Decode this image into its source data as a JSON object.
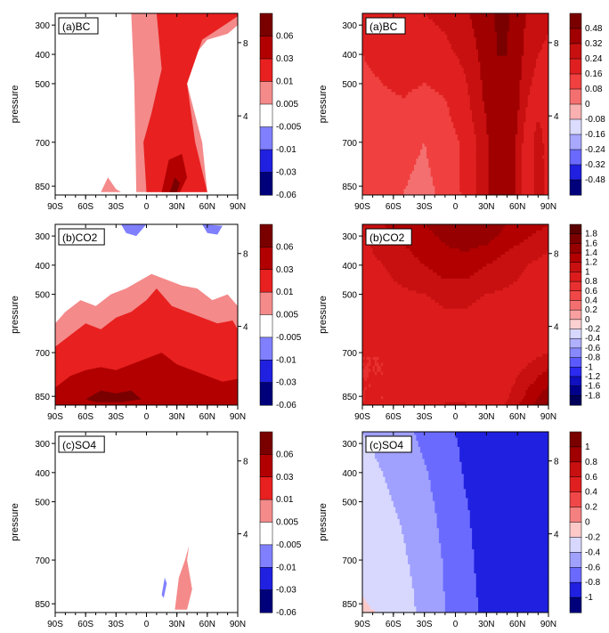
{
  "chart_data": [
    {
      "type": "heatmap",
      "panel": "(a)BC",
      "ylabel": "pressure",
      "x_ticks": [
        "90S",
        "60S",
        "30S",
        "0",
        "30N",
        "60N",
        "90N"
      ],
      "x_tick_values": [
        -90,
        -60,
        -30,
        0,
        30,
        60,
        90
      ],
      "y_ticks": [
        "300",
        "400",
        "500",
        "700",
        "850"
      ],
      "y_tick_values": [
        300,
        400,
        500,
        700,
        850
      ],
      "right_ticks": [
        "8",
        "4"
      ],
      "colorbar": {
        "levels": [
          "0.06",
          "0.03",
          "0.01",
          "0.005",
          "-0.005",
          "-0.01",
          "-0.03",
          "-0.06"
        ],
        "colors": [
          "#7a0000",
          "#b20000",
          "#e82020",
          "#f48a8a",
          "#ffffff",
          "#8080ff",
          "#2020e0",
          "#00007a"
        ]
      },
      "contour_regions": [
        {
          "level": "0.005",
          "color": "#f48a8a",
          "lon": [
            -15,
            -12,
            -10,
            30,
            60,
            55,
            40,
            48,
            60,
            80,
            90,
            90,
            45,
            -15
          ],
          "p": [
            260,
            500,
            870,
            870,
            870,
            700,
            500,
            400,
            350,
            330,
            300,
            260,
            260,
            260
          ]
        },
        {
          "level": "0.01",
          "color": "#e82020",
          "lon": [
            10,
            15,
            5,
            -3,
            0,
            20,
            42,
            60,
            48,
            40,
            55,
            90,
            90,
            10
          ],
          "p": [
            260,
            450,
            600,
            700,
            870,
            870,
            870,
            870,
            700,
            500,
            350,
            270,
            260,
            260
          ]
        },
        {
          "level": "0.03",
          "color": "#b20000",
          "lon": [
            15,
            22,
            35,
            40,
            33,
            15
          ],
          "p": [
            870,
            760,
            740,
            820,
            870,
            870
          ]
        },
        {
          "level": "0.06",
          "color": "#7a0000",
          "lon": [
            23,
            28,
            33,
            30,
            23
          ],
          "p": [
            870,
            820,
            840,
            870,
            870
          ]
        },
        {
          "level": "0.005",
          "color": "#f48a8a",
          "lon": [
            -45,
            -38,
            -30,
            -25,
            -45
          ],
          "p": [
            870,
            820,
            860,
            870,
            870
          ]
        }
      ]
    },
    {
      "type": "heatmap",
      "panel": "(a)BC",
      "x_ticks": [
        "90S",
        "60S",
        "30S",
        "0",
        "30N",
        "60N",
        "90N"
      ],
      "x_tick_values": [
        -90,
        -60,
        -30,
        0,
        30,
        60,
        90
      ],
      "y_ticks": [
        "300",
        "400",
        "500",
        "700",
        "850"
      ],
      "y_tick_values": [
        300,
        400,
        500,
        700,
        850
      ],
      "right_ticks": [
        "8",
        "4"
      ],
      "colorbar": {
        "levels": [
          "0.48",
          "0.32",
          "0.24",
          "0.16",
          "0.08",
          "0",
          "-0.08",
          "-0.16",
          "-0.24",
          "-0.32",
          "-0.48"
        ],
        "colors": [
          "#7a0000",
          "#a00000",
          "#c81010",
          "#e02020",
          "#f04040",
          "#f47070",
          "#f8b0b0",
          "#dcdcff",
          "#a8a8ff",
          "#6a6aff",
          "#2020e0",
          "#00007a"
        ]
      },
      "field": {
        "lon": [
          -90,
          -70,
          -50,
          -30,
          -10,
          10,
          30,
          40,
          50,
          60,
          70,
          80,
          90
        ],
        "p": [
          260,
          400,
          550,
          700,
          870
        ],
        "values": [
          [
            0.18,
            0.2,
            0.22,
            0.24,
            0.26,
            0.3,
            0.4,
            0.5,
            0.5,
            0.4,
            0.3,
            0.28,
            0.26
          ],
          [
            0.16,
            0.18,
            0.2,
            0.2,
            0.22,
            0.26,
            0.36,
            0.48,
            0.48,
            0.36,
            0.28,
            0.24,
            0.22
          ],
          [
            0.14,
            0.15,
            0.16,
            0.14,
            0.16,
            0.22,
            0.34,
            0.46,
            0.46,
            0.34,
            0.24,
            0.2,
            0.22
          ],
          [
            0.12,
            0.12,
            0.1,
            0.08,
            0.12,
            0.18,
            0.3,
            0.42,
            0.44,
            0.3,
            0.18,
            0.28,
            0.2
          ],
          [
            0.1,
            0.1,
            0.08,
            0.06,
            0.1,
            0.18,
            0.3,
            0.4,
            0.44,
            0.28,
            0.16,
            0.3,
            0.18
          ]
        ]
      }
    },
    {
      "type": "heatmap",
      "panel": "(b)CO2",
      "ylabel": "pressure",
      "x_ticks": [
        "90S",
        "60S",
        "30S",
        "0",
        "30N",
        "60N",
        "90N"
      ],
      "x_tick_values": [
        -90,
        -60,
        -30,
        0,
        30,
        60,
        90
      ],
      "y_ticks": [
        "300",
        "400",
        "500",
        "700",
        "850"
      ],
      "y_tick_values": [
        300,
        400,
        500,
        700,
        850
      ],
      "right_ticks": [
        "8",
        "4"
      ],
      "colorbar": {
        "levels": [
          "0.06",
          "0.03",
          "0.01",
          "0.005",
          "-0.005",
          "-0.01",
          "-0.03",
          "-0.06"
        ],
        "colors": [
          "#7a0000",
          "#b20000",
          "#e82020",
          "#f48a8a",
          "#ffffff",
          "#8080ff",
          "#2020e0",
          "#00007a"
        ]
      },
      "contour_regions": [
        {
          "level": "0.005",
          "color": "#f48a8a",
          "lon": [
            -90,
            -80,
            -65,
            -50,
            -35,
            -20,
            -5,
            5,
            20,
            35,
            50,
            65,
            80,
            90,
            90,
            -90
          ],
          "p": [
            600,
            560,
            520,
            540,
            500,
            480,
            450,
            430,
            450,
            470,
            480,
            520,
            500,
            540,
            880,
            880
          ]
        },
        {
          "level": "0.01",
          "color": "#e82020",
          "lon": [
            -90,
            -75,
            -60,
            -45,
            -30,
            -15,
            0,
            10,
            25,
            40,
            55,
            70,
            85,
            90,
            90,
            -90
          ],
          "p": [
            680,
            640,
            600,
            620,
            580,
            560,
            520,
            480,
            540,
            560,
            580,
            600,
            590,
            620,
            880,
            880
          ]
        },
        {
          "level": "0.03",
          "color": "#b20000",
          "lon": [
            -90,
            -75,
            -60,
            -45,
            -30,
            -15,
            0,
            15,
            30,
            45,
            60,
            75,
            90,
            90,
            -90
          ],
          "p": [
            820,
            780,
            760,
            750,
            760,
            740,
            720,
            700,
            740,
            760,
            780,
            800,
            790,
            880,
            880
          ]
        },
        {
          "level": "0.06",
          "color": "#7a0000",
          "lon": [
            -60,
            -45,
            -30,
            -15,
            -5,
            -25,
            -50,
            -60
          ],
          "p": [
            860,
            830,
            840,
            830,
            860,
            870,
            870,
            860
          ]
        },
        {
          "level": "-0.005",
          "color": "#8080ff",
          "lon": [
            -25,
            -20,
            -10,
            -5,
            0,
            -25
          ],
          "p": [
            260,
            290,
            300,
            280,
            260,
            260
          ]
        },
        {
          "level": "-0.005",
          "color": "#8080ff",
          "lon": [
            55,
            60,
            70,
            75,
            55
          ],
          "p": [
            260,
            290,
            295,
            265,
            260
          ]
        }
      ]
    },
    {
      "type": "heatmap",
      "panel": "(b)CO2",
      "x_ticks": [
        "90S",
        "60S",
        "30S",
        "0",
        "30N",
        "60N",
        "90N"
      ],
      "x_tick_values": [
        -90,
        -60,
        -30,
        0,
        30,
        60,
        90
      ],
      "y_ticks": [
        "300",
        "400",
        "500",
        "700",
        "850"
      ],
      "y_tick_values": [
        300,
        400,
        500,
        700,
        850
      ],
      "right_ticks": [
        "8",
        "4"
      ],
      "colorbar": {
        "levels": [
          "1.8",
          "1.6",
          "1.4",
          "1.2",
          "1",
          "0.8",
          "0.6",
          "0.4",
          "0.2",
          "0",
          "-0.2",
          "-0.4",
          "-0.6",
          "-0.8",
          "-1",
          "-1.2",
          "-1.6",
          "-1.8"
        ],
        "colors": [
          "#5a0000",
          "#7a0000",
          "#960000",
          "#b20000",
          "#c81010",
          "#dc1c1c",
          "#e83030",
          "#f04848",
          "#f47070",
          "#f8a0a0",
          "#fcd0d0",
          "#d8d8ff",
          "#b0b0ff",
          "#8888ff",
          "#5a5aff",
          "#2a2af0",
          "#1010c0",
          "#00008a",
          "#00005a"
        ]
      },
      "field": {
        "lon": [
          -90,
          -70,
          -50,
          -30,
          -10,
          10,
          30,
          50,
          70,
          90
        ],
        "p": [
          260,
          400,
          550,
          700,
          870
        ],
        "values": [
          [
            1.0,
            1.2,
            1.3,
            1.4,
            1.5,
            1.6,
            1.6,
            1.4,
            1.3,
            1.2
          ],
          [
            0.9,
            1.0,
            1.1,
            1.2,
            1.3,
            1.3,
            1.2,
            1.1,
            1.0,
            0.9
          ],
          [
            0.8,
            0.9,
            0.9,
            0.9,
            1.0,
            1.0,
            0.9,
            0.9,
            0.9,
            0.8
          ],
          [
            0.8,
            0.8,
            0.8,
            0.9,
            0.9,
            0.9,
            0.8,
            0.8,
            0.9,
            1.0
          ],
          [
            0.8,
            0.8,
            0.9,
            0.9,
            1.0,
            1.0,
            0.9,
            1.0,
            1.3,
            1.6
          ]
        ]
      }
    },
    {
      "type": "heatmap",
      "panel": "(c)SO4",
      "ylabel": "pressure",
      "x_ticks": [
        "90S",
        "60S",
        "30S",
        "0",
        "30N",
        "60N",
        "90N"
      ],
      "x_tick_values": [
        -90,
        -60,
        -30,
        0,
        30,
        60,
        90
      ],
      "y_ticks": [
        "300",
        "400",
        "500",
        "700",
        "850"
      ],
      "y_tick_values": [
        300,
        400,
        500,
        700,
        850
      ],
      "right_ticks": [
        "8",
        "4"
      ],
      "colorbar": {
        "levels": [
          "0.06",
          "0.03",
          "0.01",
          "0.005",
          "-0.005",
          "-0.01",
          "-0.03",
          "-0.06"
        ],
        "colors": [
          "#7a0000",
          "#b20000",
          "#e82020",
          "#f48a8a",
          "#ffffff",
          "#8080ff",
          "#2020e0",
          "#00007a"
        ]
      },
      "contour_regions": [
        {
          "level": "0.005",
          "color": "#f48a8a",
          "lon": [
            28,
            32,
            38,
            42,
            40,
            45,
            40,
            30,
            28
          ],
          "p": [
            870,
            760,
            700,
            650,
            700,
            800,
            870,
            870,
            870
          ]
        },
        {
          "level": "-0.005",
          "color": "#8080ff",
          "lon": [
            15,
            18,
            20,
            17,
            15
          ],
          "p": [
            820,
            760,
            780,
            830,
            820
          ]
        }
      ]
    },
    {
      "type": "heatmap",
      "panel": "(c)SO4",
      "x_ticks": [
        "90S",
        "60S",
        "30S",
        "0",
        "30N",
        "60N",
        "90N"
      ],
      "x_tick_values": [
        -90,
        -60,
        -30,
        0,
        30,
        60,
        90
      ],
      "y_ticks": [
        "300",
        "400",
        "500",
        "700",
        "850"
      ],
      "y_tick_values": [
        300,
        400,
        500,
        700,
        850
      ],
      "right_ticks": [
        "8",
        "4"
      ],
      "colorbar": {
        "levels": [
          "1",
          "0.8",
          "0.6",
          "0.4",
          "0.2",
          "0",
          "-0.2",
          "-0.4",
          "-0.6",
          "-0.8",
          "-1"
        ],
        "colors": [
          "#7a0000",
          "#a00000",
          "#c81010",
          "#e02020",
          "#f04848",
          "#f48080",
          "#fcc8c8",
          "#d8d8ff",
          "#a0a0ff",
          "#6a6aff",
          "#2020e0",
          "#00007a"
        ]
      },
      "field": {
        "lon": [
          -90,
          -70,
          -50,
          -30,
          -10,
          10,
          30,
          50,
          70,
          90
        ],
        "p": [
          260,
          400,
          550,
          700,
          870
        ],
        "values": [
          [
            -0.4,
            -0.45,
            -0.55,
            -0.65,
            -0.75,
            -0.85,
            -0.9,
            -0.92,
            -0.92,
            -0.9
          ],
          [
            -0.35,
            -0.4,
            -0.48,
            -0.58,
            -0.7,
            -0.82,
            -0.9,
            -0.92,
            -0.9,
            -0.88
          ],
          [
            -0.3,
            -0.35,
            -0.42,
            -0.52,
            -0.66,
            -0.78,
            -0.88,
            -0.9,
            -0.88,
            -0.85
          ],
          [
            -0.25,
            -0.3,
            -0.38,
            -0.48,
            -0.62,
            -0.76,
            -0.86,
            -0.88,
            -0.86,
            -0.82
          ],
          [
            -0.18,
            -0.22,
            -0.32,
            -0.46,
            -0.6,
            -0.74,
            -0.84,
            -0.86,
            -0.84,
            -0.82
          ]
        ]
      }
    }
  ]
}
